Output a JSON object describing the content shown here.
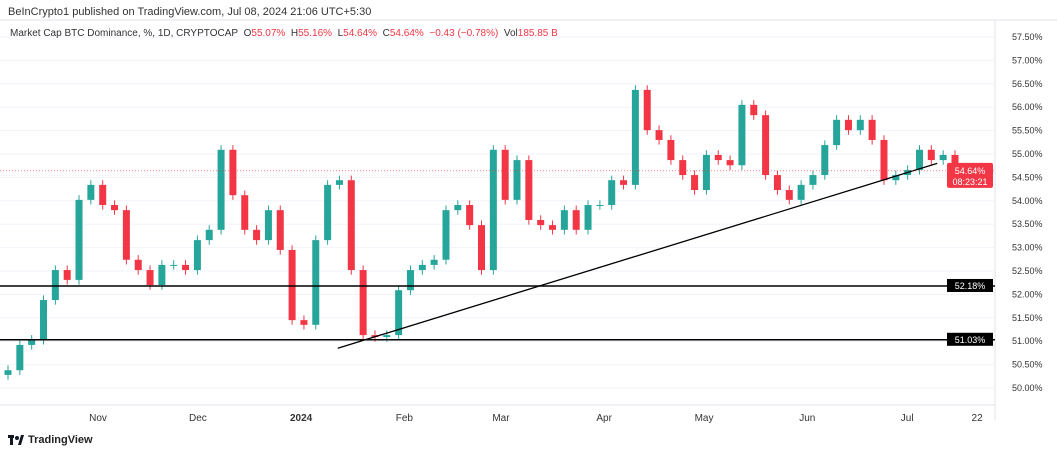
{
  "header": {
    "published": "BeInCrypto1 published on TradingView.com, Jul 08, 2024 21:06 UTC+5:30"
  },
  "legend": {
    "symbol": "Market Cap BTC Dominance, %, 1D, CRYPTOCAP",
    "o_label": "O",
    "o": "55.07%",
    "h_label": "H",
    "h": "55.16%",
    "l_label": "L",
    "l": "54.64%",
    "c_label": "C",
    "c": "54.64%",
    "change": "−0.43 (−0.78%)",
    "vol_label": "Vol",
    "vol": "185.85 B"
  },
  "footer": {
    "brand": "TradingView"
  },
  "chart_data": {
    "type": "candlestick",
    "title": "Market Cap BTC Dominance, %, 1D, CRYPTOCAP",
    "ylim": [
      49.75,
      57.75
    ],
    "y_ticks": [
      "50.00%",
      "50.50%",
      "51.00%",
      "51.50%",
      "52.00%",
      "52.50%",
      "53.00%",
      "53.50%",
      "54.00%",
      "54.50%",
      "55.00%",
      "55.50%",
      "56.00%",
      "56.50%",
      "57.00%",
      "57.50%"
    ],
    "y_tick_values": [
      50,
      50.5,
      51,
      51.5,
      52,
      52.5,
      53,
      53.5,
      54,
      54.5,
      55,
      55.5,
      56,
      56.5,
      57,
      57.5
    ],
    "x_ticks": [
      "Nov",
      "Dec",
      "2024",
      "Feb",
      "Mar",
      "Apr",
      "May",
      "Jun",
      "Jul",
      "22"
    ],
    "x_tick_dates": [
      "2023-11-01",
      "2023-12-01",
      "2024-01-01",
      "2024-02-01",
      "2024-03-01",
      "2024-04-01",
      "2024-05-01",
      "2024-06-01",
      "2024-07-01",
      "2024-07-22"
    ],
    "closes": [
      50.38,
      50.92,
      51.03,
      51.88,
      52.52,
      52.31,
      54.02,
      54.34,
      53.91,
      53.8,
      52.74,
      52.52,
      52.2,
      52.63,
      52.63,
      52.52,
      53.16,
      53.38,
      55.09,
      54.12,
      53.38,
      53.16,
      53.8,
      52.95,
      51.45,
      51.35,
      53.16,
      54.34,
      54.44,
      52.52,
      51.13,
      51.09,
      51.13,
      52.09,
      52.52,
      52.63,
      52.74,
      53.8,
      53.91,
      53.48,
      52.52,
      55.09,
      54.02,
      54.87,
      53.59,
      53.48,
      53.38,
      53.8,
      53.38,
      53.91,
      53.91,
      54.44,
      54.34,
      56.37,
      55.51,
      55.3,
      54.87,
      54.55,
      54.23,
      54.98,
      54.87,
      54.76,
      56.05,
      55.83,
      54.55,
      54.23,
      54.02,
      54.34,
      54.55,
      55.19,
      55.73,
      55.51,
      55.73,
      55.3,
      54.44,
      54.55,
      54.66,
      55.09,
      54.87,
      54.98,
      54.64
    ],
    "horizontal_levels": [
      {
        "value": 52.18,
        "label": "52.18%"
      },
      {
        "value": 51.03,
        "label": "51.03%"
      }
    ],
    "trendline": {
      "from": [
        "2024-01-12",
        50.85
      ],
      "to": [
        "2024-07-10",
        54.8
      ]
    },
    "last_price": {
      "value": 54.64,
      "label": "54.64%",
      "countdown": "08:23:21"
    },
    "colors": {
      "up": "#26a69a",
      "down": "#f23645",
      "line": "#000000",
      "grid": "#f0f3fa"
    }
  }
}
